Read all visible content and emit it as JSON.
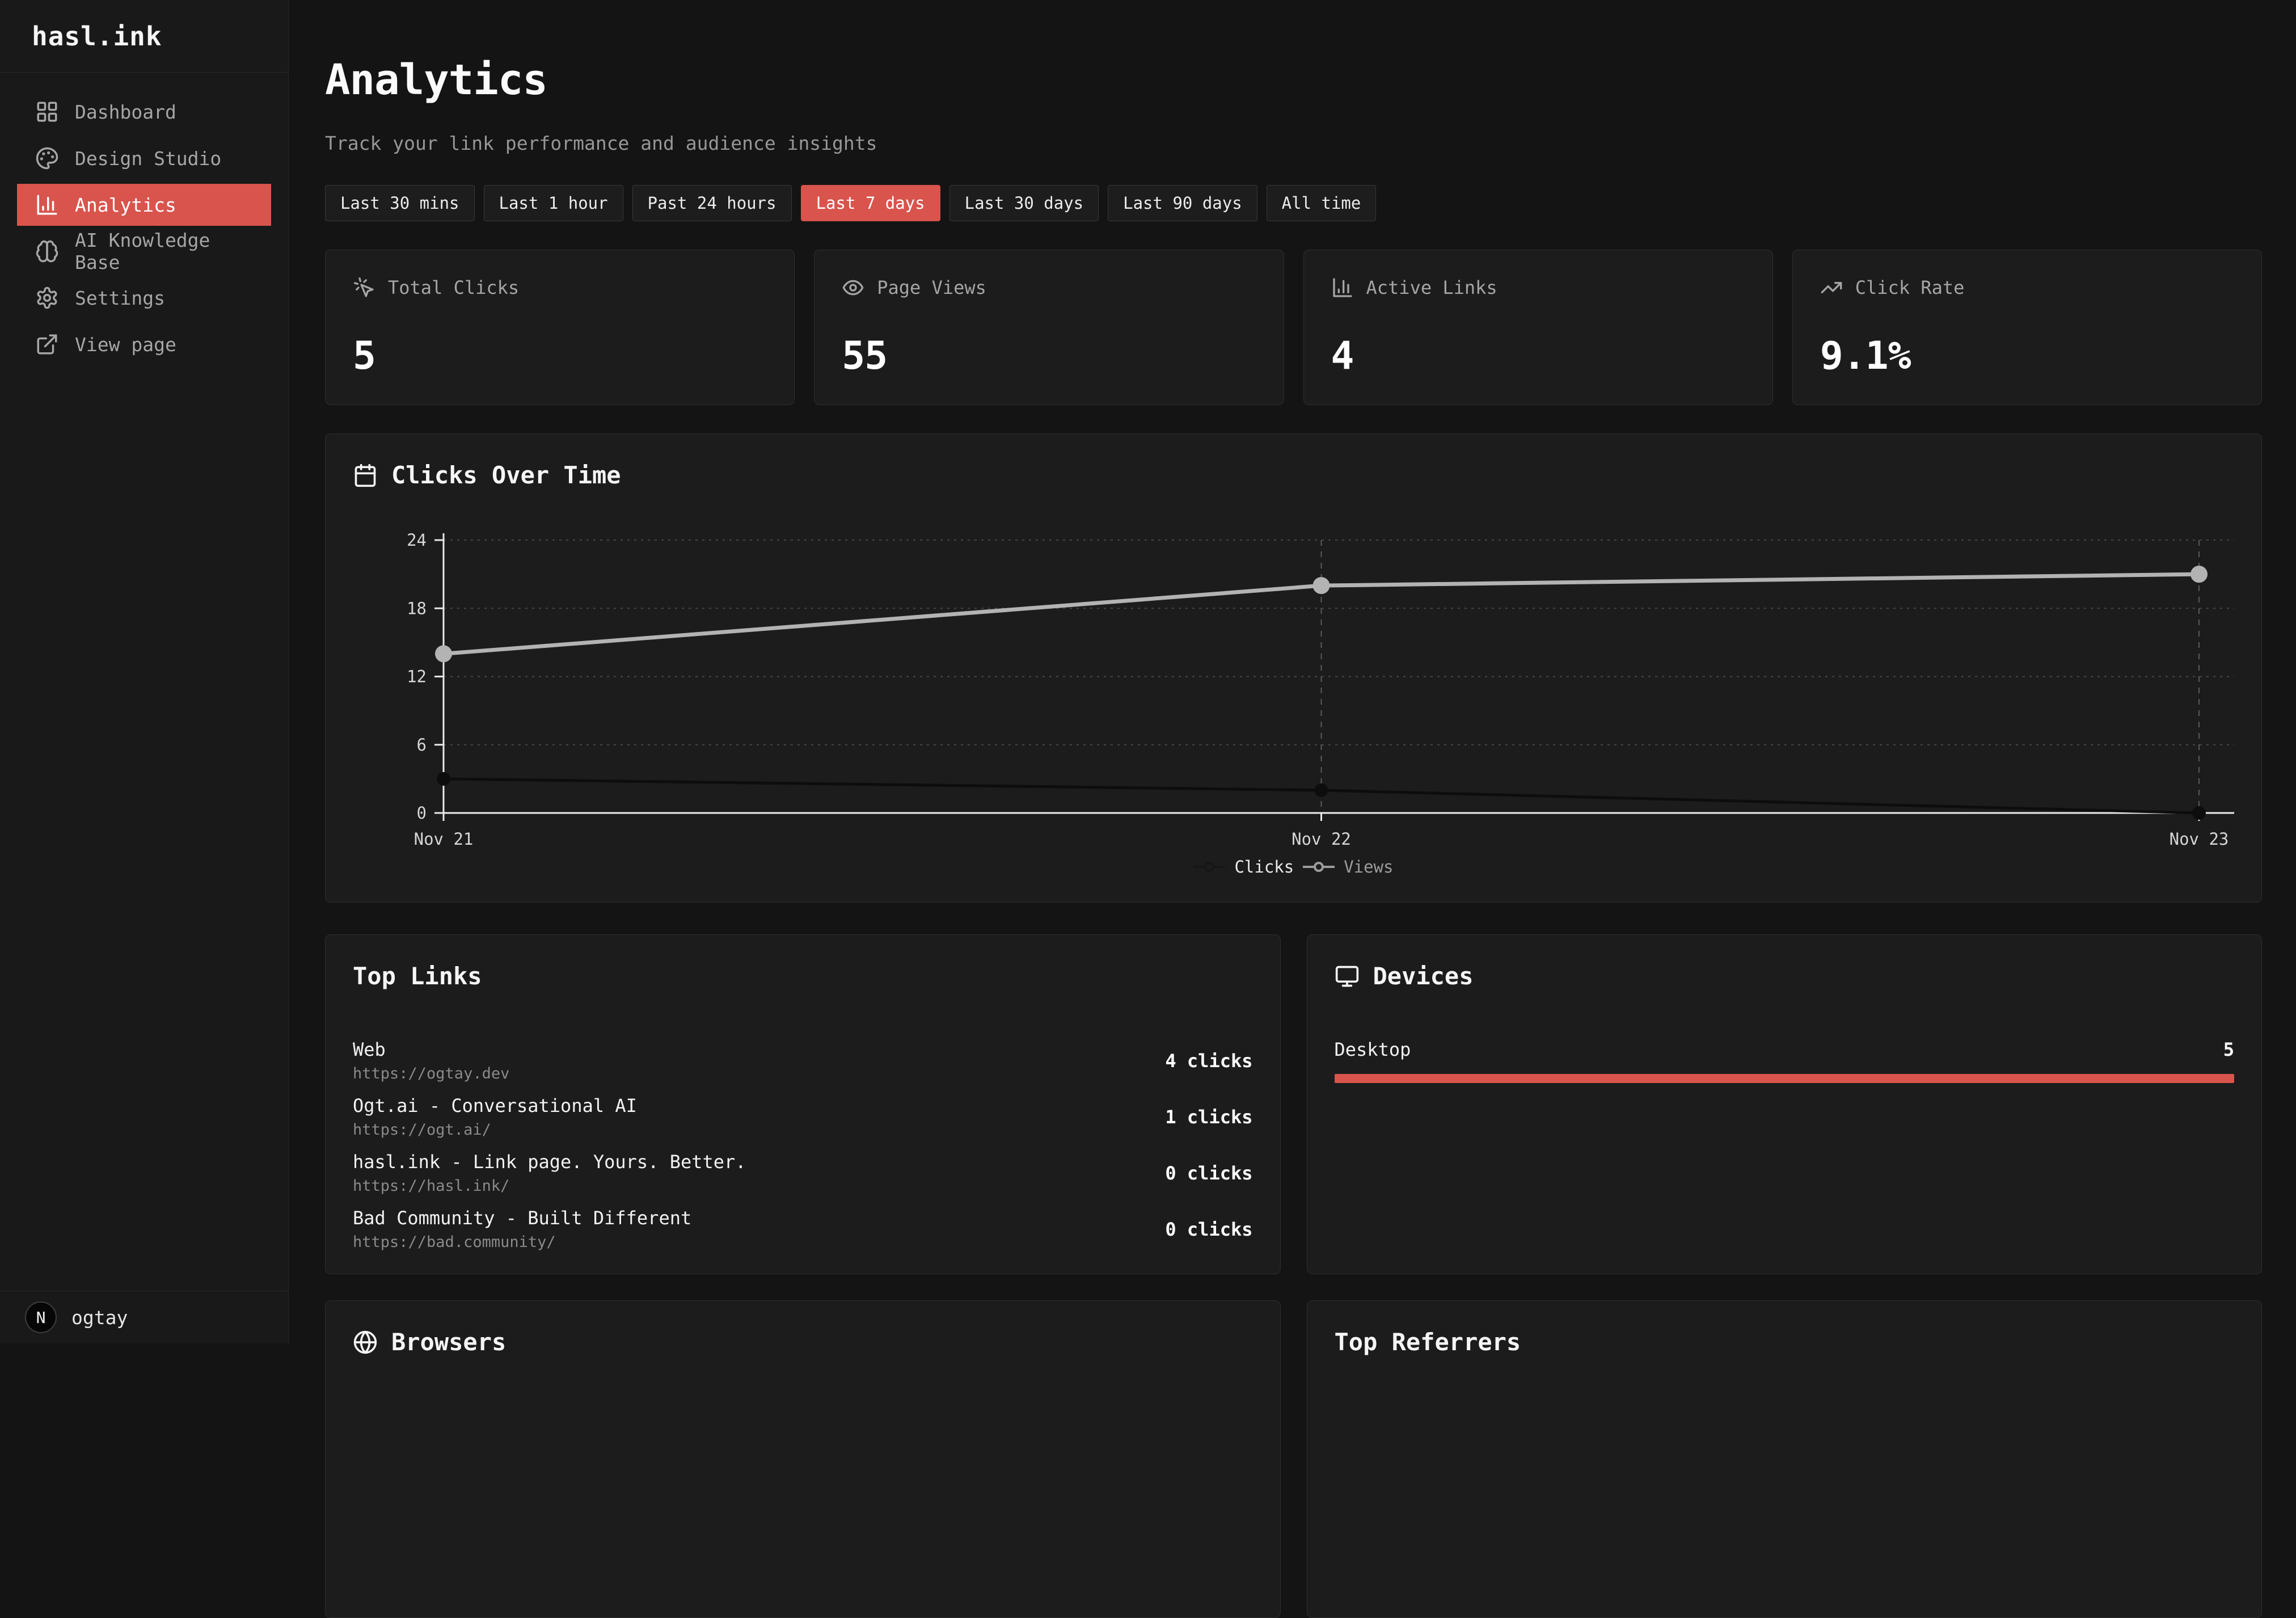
{
  "app": {
    "logo": "hasl.ink"
  },
  "sidebar": {
    "items": [
      {
        "label": "Dashboard",
        "icon": "dashboard-icon",
        "active": false
      },
      {
        "label": "Design Studio",
        "icon": "palette-icon",
        "active": false
      },
      {
        "label": "Analytics",
        "icon": "bar-chart-icon",
        "active": true
      },
      {
        "label": "AI Knowledge Base",
        "icon": "brain-icon",
        "active": false
      },
      {
        "label": "Settings",
        "icon": "gear-icon",
        "active": false
      },
      {
        "label": "View page",
        "icon": "external-link-icon",
        "active": false
      }
    ],
    "user": {
      "initial": "N",
      "name": "ogtay"
    }
  },
  "header": {
    "title": "Analytics",
    "subtitle": "Track your link performance and audience insights"
  },
  "filters": {
    "options": [
      "Last 30 mins",
      "Last 1 hour",
      "Past 24 hours",
      "Last 7 days",
      "Last 30 days",
      "Last 90 days",
      "All time"
    ],
    "active": "Last 7 days"
  },
  "stats": [
    {
      "label": "Total Clicks",
      "value": "5",
      "icon": "click-icon"
    },
    {
      "label": "Page Views",
      "value": "55",
      "icon": "eye-icon"
    },
    {
      "label": "Active Links",
      "value": "4",
      "icon": "bar-chart-icon"
    },
    {
      "label": "Click Rate",
      "value": "9.1%",
      "icon": "trending-up-icon"
    }
  ],
  "chart_card": {
    "title": "Clicks Over Time",
    "icon": "calendar-icon"
  },
  "chart_data": {
    "type": "line",
    "title": "Clicks Over Time",
    "categories": [
      "Nov 21",
      "Nov 22",
      "Nov 23"
    ],
    "series": [
      {
        "name": "Clicks",
        "values": [
          3,
          2,
          0
        ],
        "color": "#0d0d0d"
      },
      {
        "name": "Views",
        "values": [
          14,
          20,
          21
        ],
        "color": "#b3b3b3"
      }
    ],
    "ylim": [
      0,
      24
    ],
    "yticks": [
      0,
      6,
      12,
      18,
      24
    ],
    "grid": "horizontal-dotted",
    "legend_position": "bottom"
  },
  "top_links": {
    "title": "Top Links",
    "items": [
      {
        "name": "Web",
        "url": "https://ogtay.dev",
        "clicks": "4 clicks"
      },
      {
        "name": "Ogt.ai - Conversational AI",
        "url": "https://ogt.ai/",
        "clicks": "1 clicks"
      },
      {
        "name": "hasl.ink - Link page. Yours. Better.",
        "url": "https://hasl.ink/",
        "clicks": "0 clicks"
      },
      {
        "name": "Bad Community - Built Different",
        "url": "https://bad.community/",
        "clicks": "0 clicks"
      }
    ]
  },
  "devices": {
    "title": "Devices",
    "items": [
      {
        "name": "Desktop",
        "value": "5",
        "pct": 100
      }
    ]
  },
  "browsers": {
    "title": "Browsers"
  },
  "referrers": {
    "title": "Top Referrers"
  },
  "colors": {
    "accent": "#d9544d",
    "views_line": "#b3b3b3",
    "clicks_line": "#0d0d0d",
    "card_bg": "#1c1c1c"
  }
}
